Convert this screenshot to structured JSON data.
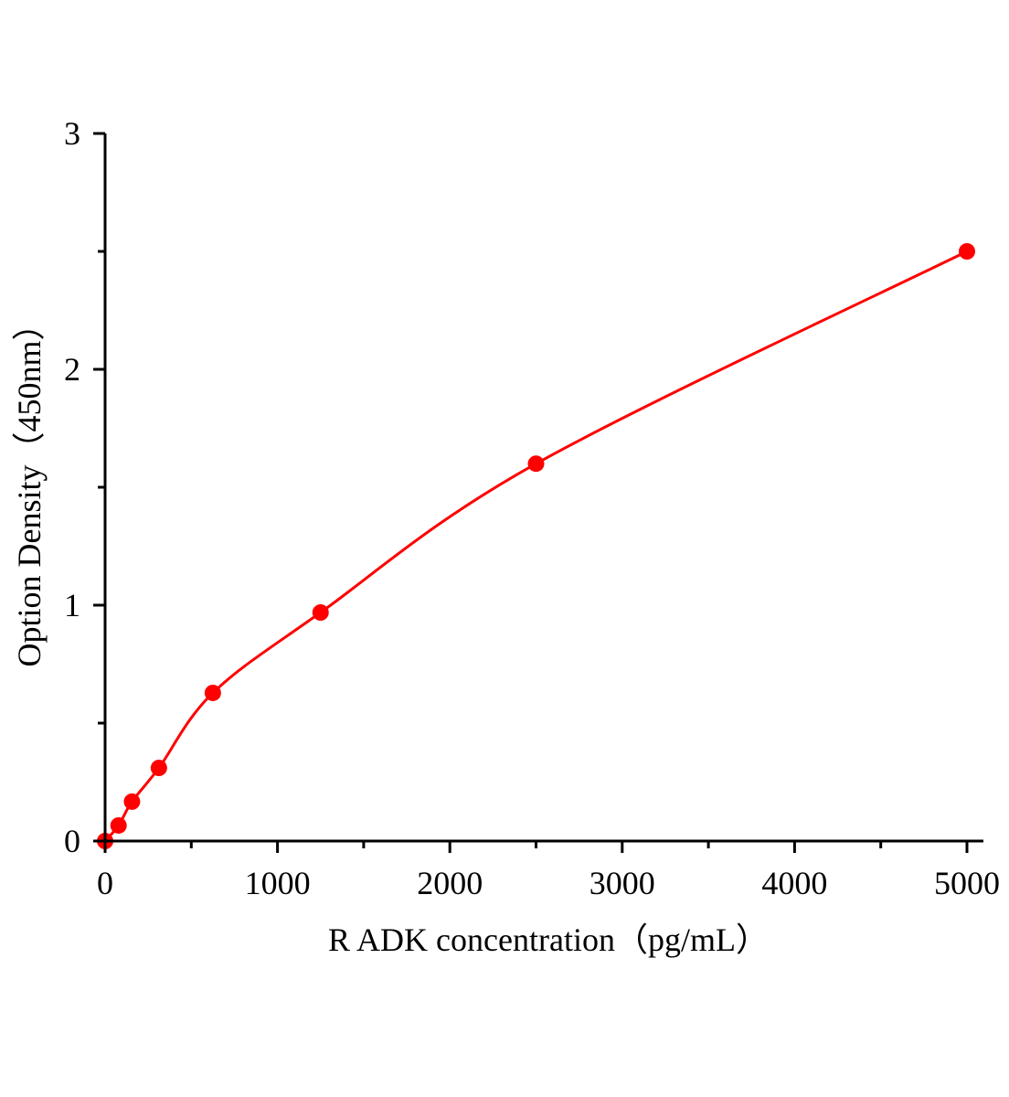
{
  "chart_data": {
    "type": "scatter",
    "title": "",
    "xlabel": "R ADK  concentration（pg/mL）",
    "ylabel": "Option Density（450nm）",
    "xlim": [
      0,
      5000
    ],
    "ylim": [
      0,
      3
    ],
    "xticks": [
      0,
      1000,
      2000,
      3000,
      4000,
      5000
    ],
    "yticks": [
      0,
      1,
      2,
      3
    ],
    "x_minor_step": 500,
    "y_minor_step": 0.5,
    "grid": false,
    "series": [
      {
        "x": [
          0,
          78,
          156,
          312,
          625,
          1250,
          2500,
          5000
        ],
        "y": [
          0,
          0.066,
          0.167,
          0.31,
          0.628,
          0.969,
          1.6,
          2.5
        ],
        "fit_curve": true
      }
    ],
    "color": "#ff0000"
  }
}
